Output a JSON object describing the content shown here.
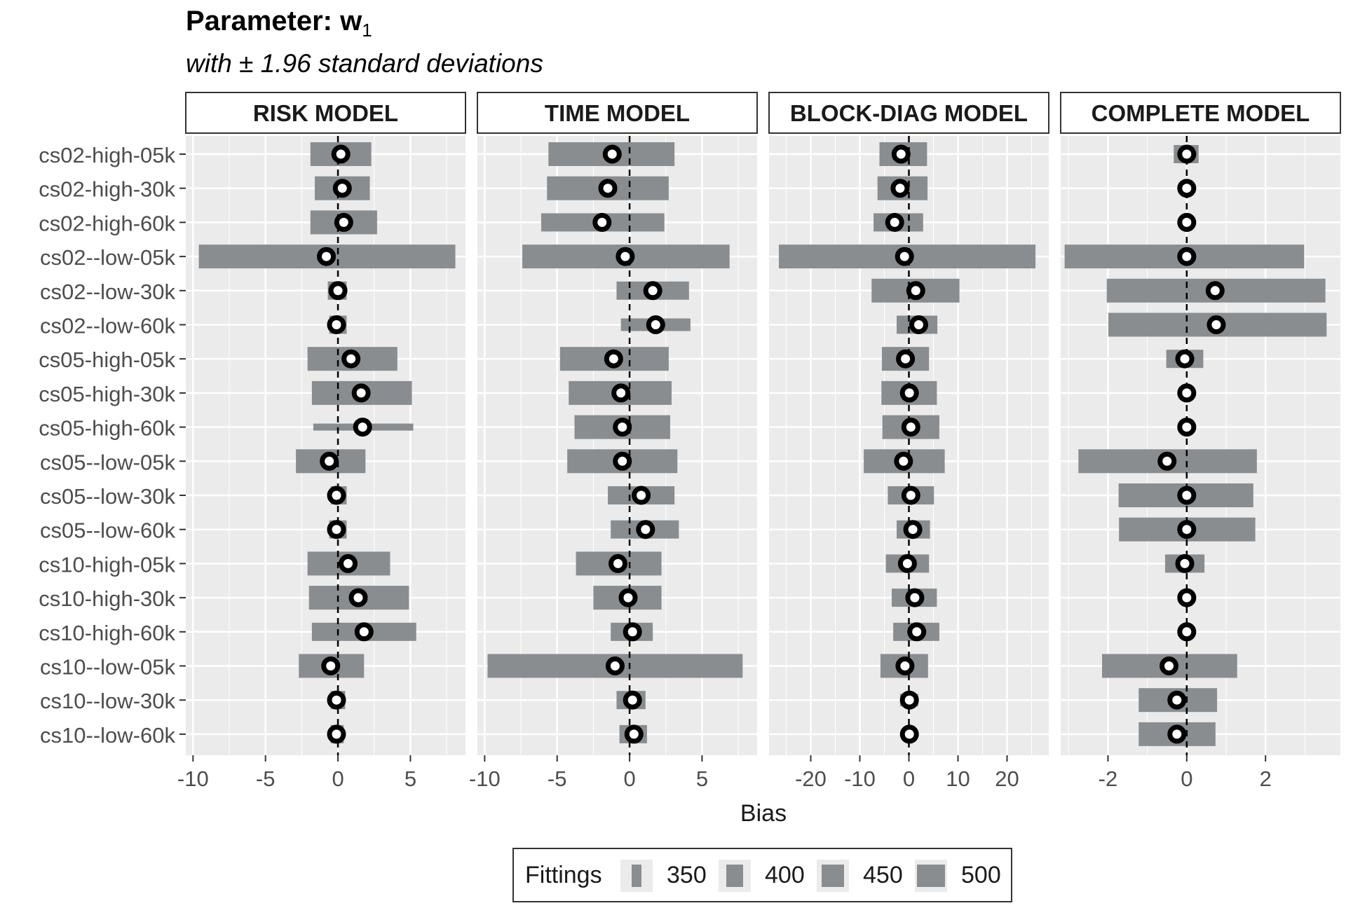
{
  "title": {
    "main": "Parameter: w",
    "main_subscript": "1",
    "subtitle": "with ± 1.96 standard deviations"
  },
  "legend": {
    "title": "Fittings",
    "items": [
      {
        "label": "350",
        "fittings": 350
      },
      {
        "label": "400",
        "fittings": 400
      },
      {
        "label": "450",
        "fittings": 450
      },
      {
        "label": "500",
        "fittings": 500
      }
    ]
  },
  "colors": {
    "panel_bg": "#ebebeb",
    "bar": "#8a8d90",
    "point_stroke": "#000000",
    "point_fill": "#ffffff",
    "strip_bg": "#ffffff"
  },
  "chart_data": {
    "type": "errorbar-dot",
    "xlabel": "Bias",
    "grid": true,
    "legend_position": "bottom",
    "categories": [
      "cs02-high-05k",
      "cs02-high-30k",
      "cs02-high-60k",
      "cs02--low-05k",
      "cs02--low-30k",
      "cs02--low-60k",
      "cs05-high-05k",
      "cs05-high-30k",
      "cs05-high-60k",
      "cs05--low-05k",
      "cs05--low-30k",
      "cs05--low-60k",
      "cs10-high-05k",
      "cs10-high-30k",
      "cs10-high-60k",
      "cs10--low-05k",
      "cs10--low-30k",
      "cs10--low-60k"
    ],
    "panels": [
      {
        "title": "RISK MODEL",
        "xlim": [
          -10.5,
          8.8
        ],
        "xticks": [
          -10,
          -5,
          0,
          5
        ],
        "xtick_labels": [
          "-10",
          "-5",
          "0",
          "5"
        ],
        "points": [
          0.2,
          0.3,
          0.4,
          -0.8,
          0.0,
          -0.1,
          0.9,
          1.6,
          1.7,
          -0.6,
          -0.1,
          -0.1,
          0.7,
          1.4,
          1.8,
          -0.5,
          -0.1,
          -0.1
        ],
        "lower": [
          -1.9,
          -1.6,
          -1.9,
          -9.6,
          -0.7,
          -0.6,
          -2.1,
          -1.8,
          -1.7,
          -2.9,
          -0.5,
          -0.6,
          -2.1,
          -2.0,
          -1.8,
          -2.7,
          -0.5,
          -0.5
        ],
        "upper": [
          2.3,
          2.2,
          2.7,
          8.1,
          0.6,
          0.6,
          4.1,
          5.1,
          5.2,
          1.9,
          0.6,
          0.6,
          3.6,
          4.9,
          5.4,
          1.8,
          0.5,
          0.4
        ],
        "fittings": [
          500,
          500,
          500,
          500,
          450,
          450,
          500,
          500,
          350,
          500,
          450,
          450,
          500,
          500,
          450,
          500,
          450,
          450
        ]
      },
      {
        "title": "TIME MODEL",
        "xlim": [
          -10.5,
          8.8
        ],
        "xticks": [
          -10,
          -5,
          0,
          5
        ],
        "xtick_labels": [
          "-10",
          "-5",
          "0",
          "5"
        ],
        "points": [
          -1.2,
          -1.5,
          -1.9,
          -0.3,
          1.6,
          1.8,
          -1.1,
          -0.6,
          -0.5,
          -0.5,
          0.8,
          1.1,
          -0.8,
          -0.1,
          0.2,
          -1.0,
          0.2,
          0.3
        ],
        "lower": [
          -5.6,
          -5.7,
          -6.1,
          -7.4,
          -0.9,
          -0.6,
          -4.8,
          -4.2,
          -3.8,
          -4.3,
          -1.5,
          -1.3,
          -3.7,
          -2.5,
          -1.3,
          -9.8,
          -0.9,
          -0.7
        ],
        "upper": [
          3.1,
          2.7,
          2.4,
          6.9,
          4.1,
          4.2,
          2.7,
          2.9,
          2.8,
          3.3,
          3.1,
          3.4,
          2.2,
          2.2,
          1.6,
          7.8,
          1.1,
          1.2
        ],
        "fittings": [
          500,
          500,
          450,
          500,
          450,
          400,
          500,
          500,
          500,
          500,
          450,
          450,
          500,
          500,
          450,
          500,
          450,
          450
        ]
      },
      {
        "title": "BLOCK-DIAG MODEL",
        "xlim": [
          -28.5,
          28.5
        ],
        "xticks": [
          -20,
          -10,
          0,
          10,
          20
        ],
        "xtick_labels": [
          "-20",
          "-10",
          "0",
          "10",
          "20"
        ],
        "points": [
          -1.6,
          -1.8,
          -2.9,
          -0.9,
          1.4,
          2.0,
          -0.7,
          0.1,
          0.4,
          -1.1,
          0.4,
          0.8,
          -0.3,
          1.2,
          1.6,
          -0.8,
          0.1,
          0.1
        ],
        "lower": [
          -6.0,
          -6.4,
          -7.2,
          -26.5,
          -7.6,
          -2.5,
          -5.5,
          -5.6,
          -5.4,
          -9.2,
          -4.3,
          -2.5,
          -4.7,
          -3.5,
          -3.2,
          -5.8,
          -1.8,
          -1.1
        ],
        "upper": [
          3.7,
          3.8,
          2.9,
          25.8,
          10.3,
          5.8,
          4.1,
          5.7,
          6.2,
          7.3,
          5.1,
          4.3,
          4.1,
          5.7,
          6.2,
          3.9,
          1.9,
          1.2
        ],
        "fittings": [
          500,
          500,
          450,
          500,
          500,
          450,
          500,
          500,
          500,
          500,
          450,
          450,
          450,
          450,
          450,
          500,
          400,
          400
        ]
      },
      {
        "title": "COMPLETE MODEL",
        "xlim": [
          -3.2,
          3.9
        ],
        "xticks": [
          -2,
          0,
          2
        ],
        "xtick_labels": [
          "-2",
          "0",
          "2"
        ],
        "points": [
          0.0,
          0.0,
          0.0,
          0.0,
          0.72,
          0.75,
          -0.05,
          0.0,
          0.0,
          -0.5,
          0.0,
          0.0,
          -0.05,
          0.0,
          0.0,
          -0.45,
          -0.25,
          -0.25
        ],
        "lower": [
          -0.33,
          -0.02,
          -0.02,
          -3.1,
          -2.03,
          -1.99,
          -0.52,
          -0.02,
          -0.02,
          -2.75,
          -1.73,
          -1.72,
          -0.55,
          -0.02,
          -0.02,
          -2.15,
          -1.22,
          -1.22
        ],
        "upper": [
          0.3,
          0.02,
          0.02,
          2.98,
          3.52,
          3.55,
          0.42,
          0.02,
          0.02,
          1.78,
          1.69,
          1.74,
          0.45,
          0.02,
          0.02,
          1.28,
          0.77,
          0.73
        ],
        "fittings": [
          450,
          350,
          350,
          500,
          500,
          500,
          450,
          350,
          350,
          500,
          500,
          500,
          450,
          350,
          350,
          500,
          500,
          500
        ]
      }
    ]
  }
}
